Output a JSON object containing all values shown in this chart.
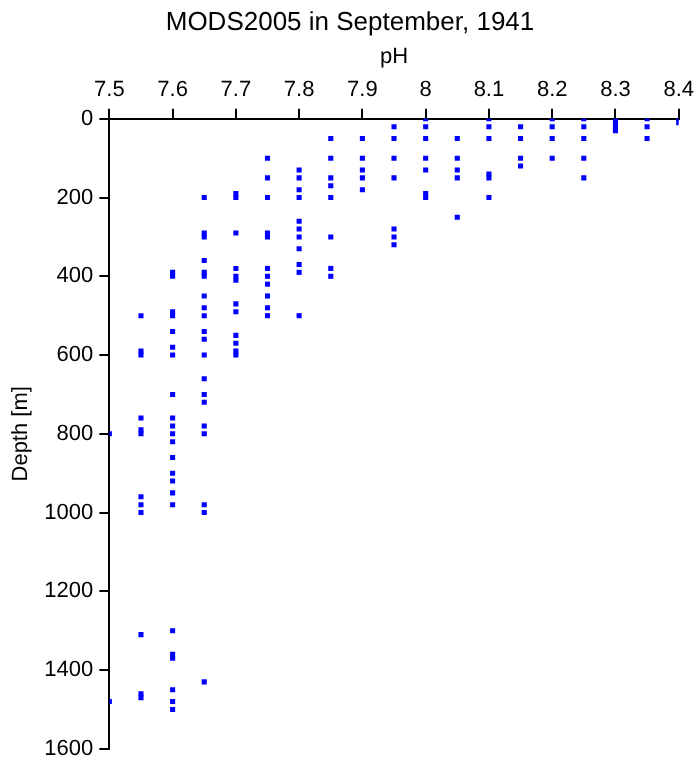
{
  "chart_data": {
    "type": "scatter",
    "title": "MODS2005 in September, 1941",
    "xlabel": "pH",
    "ylabel": "Depth [m]",
    "xlim": [
      7.5,
      8.4
    ],
    "xticks": [
      7.5,
      7.6,
      7.7,
      7.8,
      7.9,
      8,
      8.1,
      8.2,
      8.3,
      8.4
    ],
    "ylim": [
      1600,
      0
    ],
    "yticks": [
      0,
      200,
      400,
      600,
      800,
      1000,
      1200,
      1400,
      1600
    ],
    "grid": false,
    "legend": false,
    "marker": "square",
    "series": [
      {
        "color": "#0000ff",
        "x": [
          7.5,
          7.5,
          7.55,
          7.55,
          7.55,
          7.55,
          7.55,
          7.55,
          7.55,
          7.55,
          7.55,
          7.55,
          7.55,
          7.55,
          7.6,
          7.6,
          7.6,
          7.6,
          7.6,
          7.6,
          7.6,
          7.6,
          7.6,
          7.6,
          7.6,
          7.6,
          7.6,
          7.6,
          7.6,
          7.6,
          7.6,
          7.6,
          7.6,
          7.6,
          7.6,
          7.6,
          7.6,
          7.65,
          7.65,
          7.65,
          7.65,
          7.65,
          7.65,
          7.65,
          7.65,
          7.65,
          7.65,
          7.65,
          7.65,
          7.65,
          7.65,
          7.65,
          7.65,
          7.65,
          7.65,
          7.65,
          7.65,
          7.7,
          7.7,
          7.7,
          7.7,
          7.7,
          7.7,
          7.7,
          7.7,
          7.7,
          7.7,
          7.7,
          7.7,
          7.75,
          7.75,
          7.75,
          7.75,
          7.75,
          7.75,
          7.75,
          7.75,
          7.75,
          7.75,
          7.75,
          7.8,
          7.8,
          7.8,
          7.8,
          7.8,
          7.8,
          7.8,
          7.8,
          7.8,
          7.8,
          7.8,
          7.85,
          7.85,
          7.85,
          7.85,
          7.85,
          7.85,
          7.85,
          7.85,
          7.9,
          7.9,
          7.9,
          7.9,
          7.9,
          7.95,
          7.95,
          7.95,
          7.95,
          7.95,
          7.95,
          7.95,
          8,
          8,
          8,
          8,
          8,
          8,
          8,
          8.05,
          8.05,
          8.05,
          8.05,
          8.05,
          8.1,
          8.1,
          8.1,
          8.1,
          8.1,
          8.1,
          8.15,
          8.15,
          8.15,
          8.15,
          8.2,
          8.2,
          8.2,
          8.2,
          8.25,
          8.25,
          8.25,
          8.25,
          8.25,
          8.3,
          8.3,
          8.3,
          8.3,
          8.35,
          8.35,
          8.35,
          8.4,
          8.4
        ],
        "values": [
          800,
          1480,
          500,
          590,
          600,
          760,
          790,
          800,
          960,
          980,
          1000,
          1310,
          1460,
          1470,
          390,
          400,
          490,
          500,
          540,
          580,
          600,
          700,
          760,
          780,
          800,
          820,
          860,
          900,
          920,
          950,
          980,
          1300,
          1360,
          1370,
          1450,
          1480,
          1500,
          200,
          290,
          300,
          360,
          390,
          400,
          450,
          480,
          500,
          540,
          560,
          600,
          660,
          700,
          720,
          780,
          800,
          980,
          1000,
          1430,
          190,
          200,
          290,
          380,
          400,
          410,
          470,
          490,
          550,
          570,
          590,
          600,
          100,
          150,
          200,
          290,
          300,
          380,
          400,
          420,
          450,
          480,
          500,
          130,
          150,
          180,
          200,
          260,
          280,
          300,
          330,
          370,
          390,
          500,
          50,
          100,
          150,
          170,
          200,
          300,
          380,
          400,
          50,
          100,
          130,
          150,
          180,
          20,
          50,
          100,
          150,
          280,
          300,
          320,
          0,
          20,
          50,
          100,
          130,
          190,
          200,
          50,
          100,
          130,
          150,
          250,
          0,
          20,
          50,
          140,
          150,
          200,
          20,
          50,
          100,
          120,
          0,
          20,
          50,
          100,
          0,
          20,
          50,
          100,
          150,
          0,
          10,
          20,
          30,
          0,
          20,
          50,
          0,
          10
        ]
      }
    ]
  }
}
